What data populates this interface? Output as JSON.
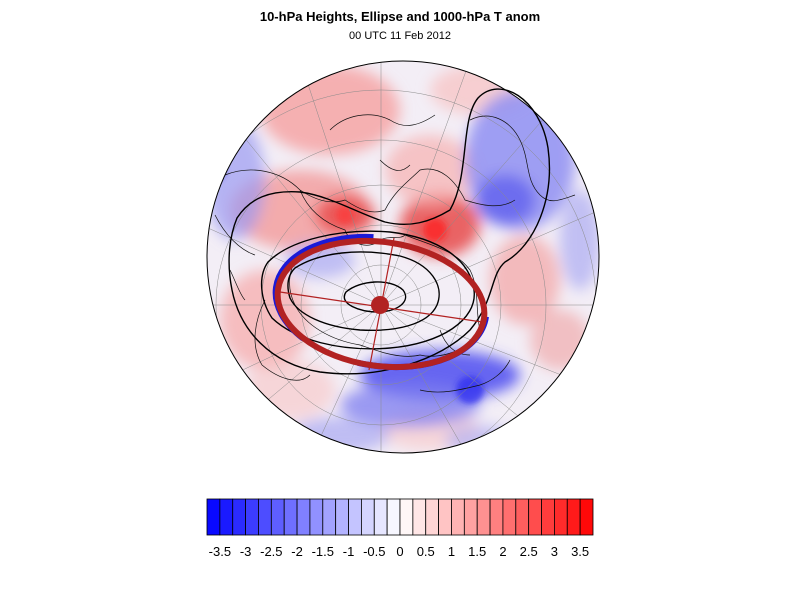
{
  "title": "10-hPa Heights, Ellipse and 1000-hPa T anom",
  "subtitle": "00 UTC 11 Feb 2012",
  "colors": {
    "min": "#0000ff",
    "mid": "#ffffff",
    "max": "#ff0000",
    "ellipse": "#b22222",
    "contour": "#000000"
  },
  "colorbar": {
    "min": -3.75,
    "max": 3.75,
    "step": 0.25,
    "ticks": [
      "-3.5",
      "-3",
      "-2.5",
      "-2",
      "-1.5",
      "-1",
      "-0.5",
      "0",
      "0.5",
      "1",
      "1.5",
      "2",
      "2.5",
      "3",
      "3.5"
    ]
  }
}
